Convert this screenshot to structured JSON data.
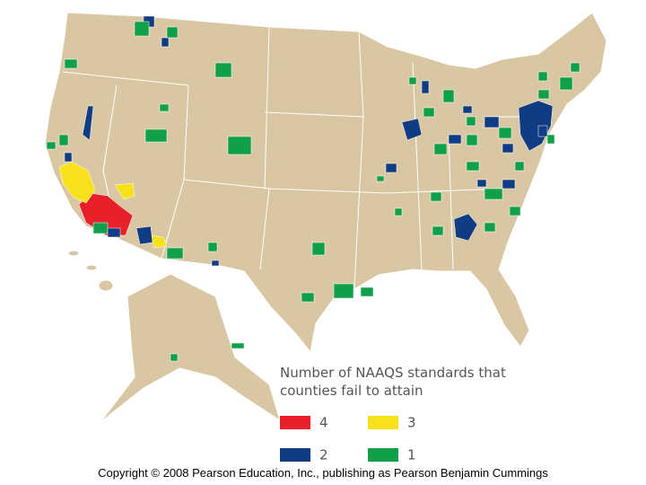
{
  "legend": {
    "title_lines": [
      "Number of NAAQS standards that",
      "counties fail to attain"
    ],
    "items": [
      {
        "label": "4",
        "color": "#e8202a"
      },
      {
        "label": "3",
        "color": "#f7e11a"
      },
      {
        "label": "2",
        "color": "#0f3c82"
      },
      {
        "label": "1",
        "color": "#10a04a"
      }
    ]
  },
  "map": {
    "land_color": "#d9c7a4",
    "border_color": "#ffffff"
  },
  "footer": {
    "copyright": "Copyright © 2008 Pearson Education, Inc., publishing as Pearson Benjamin Cummings"
  }
}
